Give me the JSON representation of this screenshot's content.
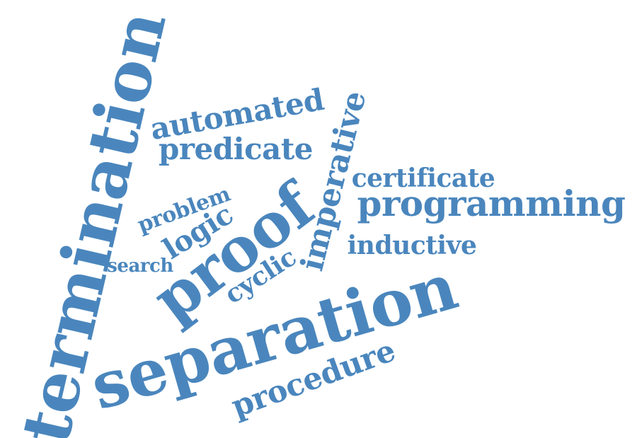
{
  "word_color": "#4a86bd",
  "background_color": "#ffffff",
  "words": {
    "termination": "termination",
    "separation": "separation",
    "proof": "proof",
    "programming": "programming",
    "procedure": "procedure",
    "imperative": "imperative",
    "automated": "automated",
    "predicate": "predicate",
    "logic": "logic",
    "certificate": "certificate",
    "inductive": "inductive",
    "cyclic": "cyclic",
    "problem": "problem",
    "search": "search"
  }
}
